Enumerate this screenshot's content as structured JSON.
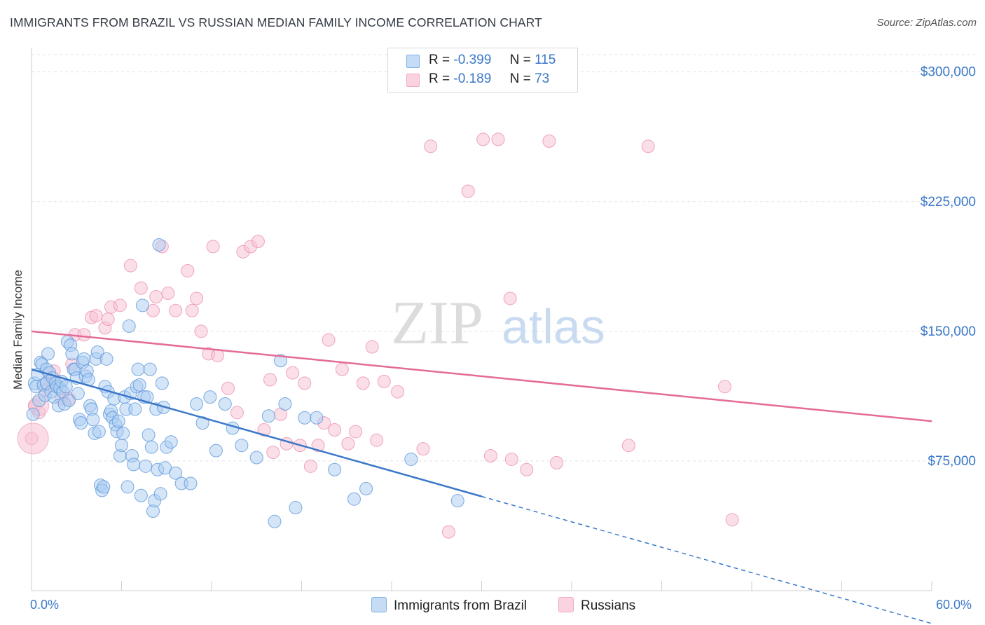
{
  "header": {
    "title": "IMMIGRANTS FROM BRAZIL VS RUSSIAN MEDIAN FAMILY INCOME CORRELATION CHART",
    "source": "Source: ZipAtlas.com"
  },
  "watermark": {
    "zip": "ZIP",
    "atlas": "atlas"
  },
  "legend_top": [
    {
      "label_r": "R =",
      "r": "-0.399",
      "label_n": "N =",
      "n": "115",
      "color": "#7fb0e8"
    },
    {
      "label_r": "R =",
      "r": "-0.189",
      "label_n": "N =",
      "n": "73",
      "color": "#f3a9c2"
    }
  ],
  "legend_bottom": [
    {
      "name": "Immigrants from Brazil",
      "color": "#7fb0e8"
    },
    {
      "name": "Russians",
      "color": "#f3a9c2"
    }
  ],
  "chart_data": {
    "type": "scatter",
    "title": "IMMIGRANTS FROM BRAZIL VS RUSSIAN MEDIAN FAMILY INCOME CORRELATION CHART",
    "xlabel": "",
    "ylabel": "Median Family Income",
    "xlim": [
      0,
      60
    ],
    "ylim": [
      0,
      310000
    ],
    "x_tick_labels": [
      "0.0%",
      "60.0%"
    ],
    "y_ticks": [
      75000,
      150000,
      225000,
      300000
    ],
    "y_tick_labels": [
      "$75,000",
      "$150,000",
      "$225,000",
      "$300,000"
    ],
    "grid": true,
    "legend_position": "top-center",
    "colors": {
      "brazil": "#3b78c9",
      "russia": "#e56b97"
    },
    "series": [
      {
        "name": "Immigrants from Brazil",
        "color": "#7fb0e8",
        "trend": {
          "x0": 0.0,
          "y0": 128000,
          "x1": 30.0,
          "y1": 54500,
          "dash_to_x": 60.0,
          "dash_to_y": -19000
        },
        "points": [
          [
            0.1,
            102000
          ],
          [
            0.2,
            120000
          ],
          [
            0.3,
            118000
          ],
          [
            0.4,
            125000
          ],
          [
            0.5,
            110000
          ],
          [
            0.6,
            132000
          ],
          [
            0.7,
            131000
          ],
          [
            0.8,
            119000
          ],
          [
            0.9,
            113000
          ],
          [
            1.0,
            128000
          ],
          [
            1.0,
            120000
          ],
          [
            1.1,
            137000
          ],
          [
            1.2,
            126000
          ],
          [
            1.3,
            115000
          ],
          [
            1.4,
            123000
          ],
          [
            1.5,
            112000
          ],
          [
            1.6,
            120000
          ],
          [
            1.7,
            118000
          ],
          [
            1.8,
            107000
          ],
          [
            1.9,
            117000
          ],
          [
            2.0,
            121000
          ],
          [
            2.1,
            115000
          ],
          [
            2.2,
            108000
          ],
          [
            2.3,
            118000
          ],
          [
            2.4,
            144000
          ],
          [
            2.5,
            110000
          ],
          [
            2.6,
            142000
          ],
          [
            2.7,
            137000
          ],
          [
            2.8,
            128000
          ],
          [
            2.9,
            128000
          ],
          [
            3.0,
            123000
          ],
          [
            3.1,
            114000
          ],
          [
            3.2,
            99000
          ],
          [
            3.3,
            97000
          ],
          [
            3.4,
            132000
          ],
          [
            3.5,
            134000
          ],
          [
            3.6,
            124000
          ],
          [
            3.7,
            127000
          ],
          [
            3.8,
            122000
          ],
          [
            3.9,
            107000
          ],
          [
            4.0,
            105000
          ],
          [
            4.1,
            99000
          ],
          [
            4.2,
            91000
          ],
          [
            4.3,
            134000
          ],
          [
            4.4,
            138000
          ],
          [
            4.5,
            92000
          ],
          [
            4.6,
            61000
          ],
          [
            4.7,
            58000
          ],
          [
            4.8,
            60000
          ],
          [
            4.9,
            118000
          ],
          [
            5.0,
            134000
          ],
          [
            5.1,
            115000
          ],
          [
            5.2,
            102000
          ],
          [
            5.3,
            104000
          ],
          [
            5.4,
            100000
          ],
          [
            5.5,
            111000
          ],
          [
            5.6,
            96000
          ],
          [
            5.7,
            92000
          ],
          [
            5.8,
            98000
          ],
          [
            5.9,
            78000
          ],
          [
            6.0,
            84000
          ],
          [
            6.1,
            91000
          ],
          [
            6.2,
            112000
          ],
          [
            6.3,
            105000
          ],
          [
            6.4,
            60000
          ],
          [
            6.5,
            153000
          ],
          [
            6.6,
            114000
          ],
          [
            6.7,
            78000
          ],
          [
            6.8,
            73000
          ],
          [
            6.9,
            105000
          ],
          [
            7.0,
            118000
          ],
          [
            7.1,
            128000
          ],
          [
            7.2,
            119000
          ],
          [
            7.3,
            55000
          ],
          [
            7.4,
            165000
          ],
          [
            7.5,
            112000
          ],
          [
            7.6,
            72000
          ],
          [
            7.7,
            112000
          ],
          [
            7.8,
            90000
          ],
          [
            7.9,
            128000
          ],
          [
            8.0,
            83000
          ],
          [
            8.1,
            46000
          ],
          [
            8.2,
            52000
          ],
          [
            8.3,
            105000
          ],
          [
            8.4,
            70000
          ],
          [
            8.5,
            200000
          ],
          [
            8.6,
            56000
          ],
          [
            8.7,
            120000
          ],
          [
            8.8,
            106000
          ],
          [
            8.9,
            71000
          ],
          [
            9.0,
            83000
          ],
          [
            9.3,
            86000
          ],
          [
            9.6,
            68000
          ],
          [
            10.0,
            62000
          ],
          [
            10.6,
            62000
          ],
          [
            11.0,
            108000
          ],
          [
            11.4,
            97000
          ],
          [
            11.9,
            112000
          ],
          [
            12.3,
            81000
          ],
          [
            12.9,
            108000
          ],
          [
            13.4,
            94000
          ],
          [
            14.0,
            84000
          ],
          [
            15.0,
            77000
          ],
          [
            15.8,
            101000
          ],
          [
            16.2,
            40000
          ],
          [
            16.6,
            133000
          ],
          [
            16.9,
            108000
          ],
          [
            17.6,
            48000
          ],
          [
            18.2,
            100000
          ],
          [
            19.0,
            100000
          ],
          [
            20.2,
            70000
          ],
          [
            21.5,
            53000
          ],
          [
            22.3,
            59000
          ],
          [
            25.3,
            76000
          ],
          [
            28.4,
            52000
          ]
        ]
      },
      {
        "name": "Russians",
        "color": "#f3a9c2",
        "trend": {
          "x0": 0.0,
          "y0": 150000,
          "x1": 60.0,
          "y1": 98000
        },
        "points": [
          [
            0.0,
            88000
          ],
          [
            0.2,
            107000
          ],
          [
            0.5,
            103000
          ],
          [
            0.9,
            116000
          ],
          [
            1.2,
            122000
          ],
          [
            1.5,
            127000
          ],
          [
            2.0,
            111000
          ],
          [
            2.5,
            111000
          ],
          [
            2.7,
            131000
          ],
          [
            2.9,
            148000
          ],
          [
            3.5,
            148000
          ],
          [
            4.0,
            158000
          ],
          [
            4.3,
            159000
          ],
          [
            4.9,
            152000
          ],
          [
            5.1,
            157000
          ],
          [
            5.3,
            164000
          ],
          [
            5.9,
            165000
          ],
          [
            6.6,
            188000
          ],
          [
            7.3,
            175000
          ],
          [
            8.1,
            162000
          ],
          [
            8.3,
            170000
          ],
          [
            8.7,
            199000
          ],
          [
            9.1,
            172000
          ],
          [
            9.6,
            162000
          ],
          [
            10.4,
            185000
          ],
          [
            10.7,
            162000
          ],
          [
            11.0,
            169000
          ],
          [
            11.3,
            150000
          ],
          [
            11.8,
            137000
          ],
          [
            12.1,
            199000
          ],
          [
            12.4,
            136000
          ],
          [
            13.1,
            117000
          ],
          [
            13.7,
            103000
          ],
          [
            14.1,
            196000
          ],
          [
            14.6,
            199000
          ],
          [
            15.1,
            202000
          ],
          [
            15.5,
            93000
          ],
          [
            15.9,
            122000
          ],
          [
            16.1,
            80000
          ],
          [
            16.6,
            102000
          ],
          [
            17.0,
            85000
          ],
          [
            17.4,
            126000
          ],
          [
            17.9,
            84000
          ],
          [
            18.2,
            120000
          ],
          [
            18.6,
            72000
          ],
          [
            19.1,
            84000
          ],
          [
            19.5,
            97000
          ],
          [
            19.8,
            145000
          ],
          [
            20.2,
            93000
          ],
          [
            20.7,
            128000
          ],
          [
            21.1,
            85000
          ],
          [
            21.6,
            92000
          ],
          [
            22.1,
            120000
          ],
          [
            22.7,
            141000
          ],
          [
            23.0,
            87000
          ],
          [
            23.5,
            121000
          ],
          [
            24.4,
            115000
          ],
          [
            26.1,
            82000
          ],
          [
            26.6,
            257000
          ],
          [
            27.8,
            34000
          ],
          [
            29.1,
            231000
          ],
          [
            30.1,
            261000
          ],
          [
            30.6,
            78000
          ],
          [
            31.1,
            261000
          ],
          [
            31.9,
            169000
          ],
          [
            32.0,
            76000
          ],
          [
            33.0,
            70000
          ],
          [
            34.5,
            260000
          ],
          [
            35.0,
            74000
          ],
          [
            39.8,
            84000
          ],
          [
            41.1,
            257000
          ],
          [
            46.2,
            118000
          ],
          [
            46.7,
            41000
          ]
        ]
      }
    ]
  }
}
